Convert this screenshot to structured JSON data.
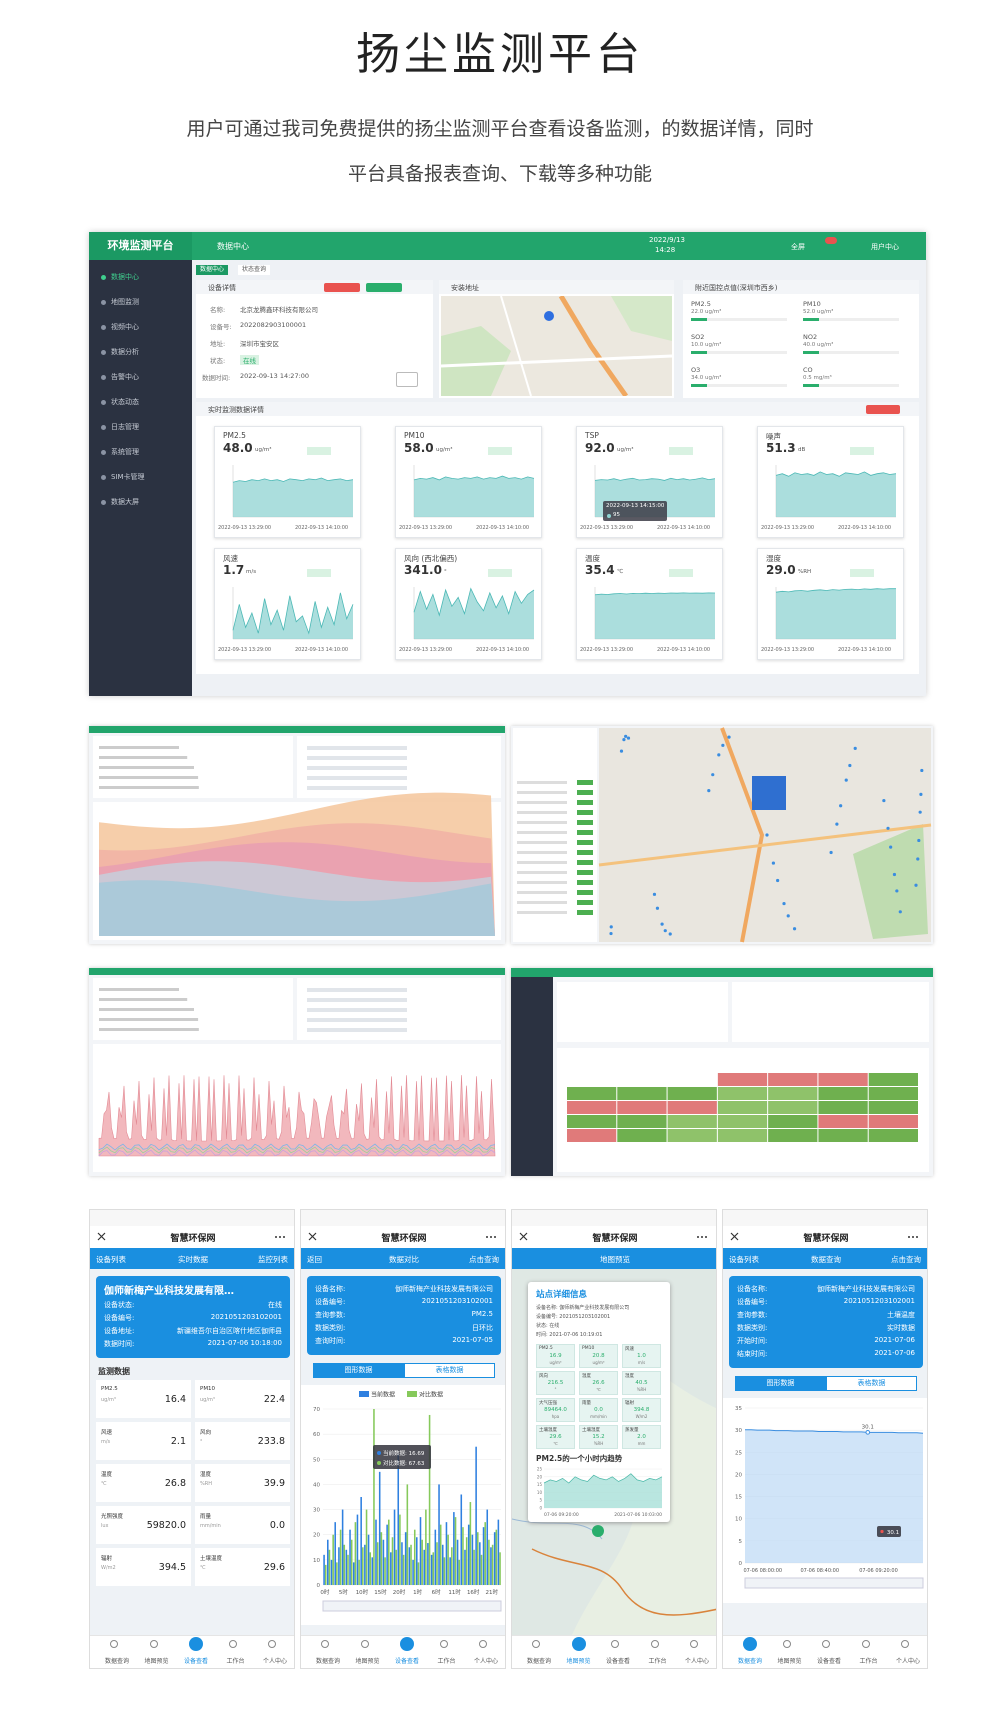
{
  "header": {
    "title": "扬尘监测平台",
    "subtitle": [
      "用户可通过我司免费提供的扬尘监测平台查看设备监测，的数据详情，同时",
      "平台具备报表查询、下载等多种功能"
    ]
  },
  "dashboard": {
    "brand": "环境监测平台",
    "page": "数据中心",
    "date": "2022/9/13",
    "time": "14:28",
    "fullscreen": "全屏",
    "user": "用户中心",
    "menu": [
      "数据中心",
      "地图监测",
      "视频中心",
      "数据分析",
      "告警中心",
      "状态动态",
      "日志管理",
      "系统管理",
      "SIM卡管理",
      "数据大屏"
    ],
    "tabs": [
      "数据中心",
      "状态查询"
    ],
    "device": {
      "title": "设备详情",
      "fields": [
        {
          "label": "名称:",
          "value": "北京龙腾鑫环科技有限公司"
        },
        {
          "label": "设备号:",
          "value": "2022082903100001"
        },
        {
          "label": "地址:",
          "value": "深圳市宝安区"
        },
        {
          "label": "状态:",
          "value": "在线"
        },
        {
          "label": "数据时间:",
          "value": "2022-09-13 14:27:00"
        }
      ]
    },
    "map": {
      "title": "安装地址"
    },
    "nearby": {
      "title": "附近国控点值(深圳市西乡)",
      "items": [
        {
          "name": "PM2.5",
          "value": "22.0 ug/m³"
        },
        {
          "name": "PM10",
          "value": "52.0 ug/m³"
        },
        {
          "name": "SO2",
          "value": "10.0 ug/m³"
        },
        {
          "name": "NO2",
          "value": "40.0 ug/m³"
        },
        {
          "name": "O3",
          "value": "34.0 ug/m³"
        },
        {
          "name": "CO",
          "value": "0.5 mg/m³"
        }
      ]
    },
    "realtime": {
      "title": "实时监测数据详情",
      "x_labels": [
        "2022-09-13 13:29:00",
        "2022-09-13 14:10:00"
      ],
      "sensors": [
        {
          "name": "PM2.5",
          "value": "48.0",
          "unit": "ug/m³",
          "ylim": [
            0,
            60
          ],
          "trend": [
            40,
            42,
            41,
            43,
            42,
            44,
            42,
            43,
            41,
            44,
            43,
            42,
            44,
            43,
            45,
            42,
            43,
            44,
            42,
            43
          ]
        },
        {
          "name": "PM10",
          "value": "58.0",
          "unit": "ug/m³",
          "ylim": [
            0,
            70
          ],
          "trend": [
            50,
            52,
            51,
            53,
            50,
            54,
            52,
            51,
            53,
            52,
            54,
            51,
            53,
            52,
            55,
            52,
            53,
            51,
            54,
            52
          ]
        },
        {
          "name": "TSP",
          "value": "92.0",
          "unit": "ug/m³",
          "ylim": [
            0,
            125
          ],
          "trend": [
            88,
            90,
            89,
            92,
            88,
            91,
            93,
            89,
            90,
            92,
            91,
            88,
            93,
            90,
            92,
            89,
            91,
            94,
            90,
            92
          ],
          "tooltip": [
            "2022-09-13 14:15:00",
            "95"
          ]
        },
        {
          "name": "噪声",
          "value": "51.3",
          "unit": "dB",
          "ylim": [
            0,
            60
          ],
          "trend": [
            48,
            50,
            47,
            51,
            49,
            50,
            48,
            52,
            49,
            50,
            47,
            51,
            50,
            49,
            52,
            48,
            50,
            51,
            49,
            50
          ]
        },
        {
          "name": "风速",
          "value": "1.7",
          "unit": "m/s",
          "ylim": [
            0,
            1.8
          ],
          "trend": [
            0.3,
            1.2,
            0.4,
            0.9,
            0.2,
            1.4,
            0.5,
            1.0,
            0.3,
            1.5,
            0.6,
            0.8,
            0.2,
            1.3,
            0.4,
            1.1,
            0.5,
            1.6,
            0.7,
            1.2
          ]
        },
        {
          "name": "风向 (西北偏西)",
          "value": "341.0",
          "unit": "°",
          "ylim": [
            0,
            350
          ],
          "trend": [
            180,
            320,
            200,
            300,
            160,
            330,
            220,
            280,
            170,
            340,
            250,
            190,
            310,
            210,
            290,
            170,
            320,
            240,
            300,
            330
          ]
        },
        {
          "name": "温度",
          "value": "35.4",
          "unit": "℃",
          "ylim": [
            0,
            40
          ],
          "trend": [
            34,
            34.5,
            34.2,
            34.8,
            35,
            34.6,
            35.1,
            34.9,
            35.2,
            35,
            35.3,
            35.1,
            35.4,
            35.2,
            35.5,
            35.3,
            35.4,
            35.2,
            35.5,
            35.4
          ]
        },
        {
          "name": "湿度",
          "value": "29.0",
          "unit": "%RH",
          "ylim": [
            0,
            30
          ],
          "trend": [
            27,
            27.5,
            27.2,
            27.8,
            28,
            27.6,
            28.1,
            28.4,
            28,
            28.5,
            28.2,
            28.6,
            28.8,
            28.5,
            28.9,
            28.7,
            29,
            28.8,
            29,
            29
          ]
        }
      ]
    }
  },
  "phones": {
    "app": "智慧环保网",
    "nav": [
      "数据查询",
      "地图预览",
      "设备查看",
      "工作台",
      "个人中心"
    ],
    "items": [
      {
        "bar": [
          "设备列表",
          "实时数据",
          "监控列表"
        ],
        "nav_active": 2,
        "card": {
          "title": "伽师新梅产业科技发展有限…",
          "rows": [
            {
              "label": "设备状态:",
              "value": "在线"
            },
            {
              "label": "设备编号:",
              "value": "2021051203102001"
            },
            {
              "label": "设备地址:",
              "value": "新疆维吾尔自治区喀什地区伽师县"
            },
            {
              "label": "数据时间:",
              "value": "2021-07-06 10:18:00"
            }
          ]
        },
        "section": "监测数据",
        "items": [
          {
            "name": "PM2.5",
            "unit": "ug/m³",
            "value": "16.4"
          },
          {
            "name": "PM10",
            "unit": "ug/m³",
            "value": "22.4"
          },
          {
            "name": "风速",
            "unit": "m/s",
            "value": "2.1"
          },
          {
            "name": "风向",
            "unit": "°",
            "value": "233.8"
          },
          {
            "name": "温度",
            "unit": "℃",
            "value": "26.8"
          },
          {
            "name": "湿度",
            "unit": "%RH",
            "value": "39.9"
          },
          {
            "name": "光照强度",
            "unit": "lux",
            "value": "59820.0"
          },
          {
            "name": "雨量",
            "unit": "mm/min",
            "value": "0.0"
          },
          {
            "name": "辐射",
            "unit": "W/m2",
            "value": "394.5"
          },
          {
            "name": "土壤温度",
            "unit": "℃",
            "value": "29.6"
          }
        ]
      },
      {
        "bar": [
          "返回",
          "数据对比",
          "点击查询"
        ],
        "nav_active": 2,
        "card": {
          "rows": [
            {
              "label": "设备名称:",
              "value": "伽师新梅产业科技发展有限公司"
            },
            {
              "label": "设备编号:",
              "value": "2021051203102001"
            },
            {
              "label": "查询参数:",
              "value": "PM2.5"
            },
            {
              "label": "数据类别:",
              "value": "日环比"
            },
            {
              "label": "查询时间:",
              "value": "2021-07-05"
            }
          ]
        },
        "buttons": [
          "图形数据",
          "表格数据"
        ],
        "chart": {
          "type": "bar",
          "ylim": [
            0,
            70
          ],
          "yticks": [
            0,
            10,
            20,
            30,
            40,
            50,
            60,
            70
          ],
          "categories": [
            "0时",
            null,
            null,
            null,
            null,
            "5时",
            null,
            null,
            null,
            null,
            "10时",
            null,
            null,
            null,
            null,
            "15时",
            null,
            null,
            null,
            null,
            "20时",
            null,
            null,
            null,
            null,
            "1时",
            null,
            null,
            null,
            null,
            "6时",
            null,
            null,
            null,
            null,
            "11时",
            null,
            null,
            null,
            null,
            "16时",
            null,
            null,
            null,
            null,
            "21时",
            null,
            null
          ],
          "series": [
            {
              "name": "当前数据",
              "color": "#2f80e0",
              "values": [
                12,
                18,
                10,
                25,
                15,
                30,
                14,
                22,
                9,
                28,
                35,
                16,
                20,
                11,
                26,
                45,
                18,
                24,
                13,
                30,
                52,
                17,
                21,
                15,
                10,
                19,
                27,
                14,
                16.69,
                12,
                22,
                40,
                16,
                25,
                11,
                29,
                18,
                36,
                14,
                24,
                20,
                55,
                17,
                23,
                30,
                15,
                21,
                26
              ]
            },
            {
              "name": "对比数据",
              "color": "#86c95b",
              "values": [
                8,
                14,
                20,
                9,
                22,
                16,
                12,
                18,
                25,
                10,
                15,
                30,
                13,
                70,
                17,
                21,
                11,
                26,
                19,
                14,
                28,
                12,
                40,
                16,
                22,
                9,
                18,
                30,
                67.63,
                13,
                17,
                24,
                11,
                20,
                15,
                27,
                10,
                23,
                19,
                33,
                14,
                21,
                12,
                25,
                18,
                16,
                22,
                13
              ]
            }
          ],
          "tooltip": [
            "当前数据: 16.69",
            "对比数据: 67.63"
          ]
        }
      },
      {
        "bar": [
          "地图预览"
        ],
        "nav_active": 1,
        "popup": {
          "title": "站点详细信息",
          "lines": [
            "设备名称: 伽师新梅产业科技发展有限公司",
            "设备编号: 2021051203102001",
            "状态: 在线",
            "时间: 2021-07-06 10:19:01"
          ],
          "cells": [
            {
              "name": "PM2.5",
              "value": "16.9",
              "unit": "ug/m³"
            },
            {
              "name": "PM10",
              "value": "20.8",
              "unit": "ug/m³"
            },
            {
              "name": "风速",
              "value": "1.0",
              "unit": "m/s"
            },
            {
              "name": "风向",
              "value": "216.5",
              "unit": "°"
            },
            {
              "name": "温度",
              "value": "26.6",
              "unit": "℃"
            },
            {
              "name": "湿度",
              "value": "40.5",
              "unit": "%RH"
            },
            {
              "name": "大气压强",
              "value": "89464.0",
              "unit": "hpa"
            },
            {
              "name": "雨量",
              "value": "0.0",
              "unit": "mm/min"
            },
            {
              "name": "辐射",
              "value": "394.8",
              "unit": "W/m2"
            },
            {
              "name": "土壤温度",
              "value": "29.6",
              "unit": "℃"
            },
            {
              "name": "土壤湿度",
              "value": "15.2",
              "unit": "%RH"
            },
            {
              "name": "蒸发量",
              "value": "2.0",
              "unit": "mm"
            }
          ],
          "trend_title": "PM2.5的一个小时内趋势",
          "ylim": [
            0,
            25
          ],
          "yticks": [
            0,
            5,
            10,
            15,
            20,
            25
          ],
          "trend": [
            16,
            18,
            17,
            19,
            16,
            20,
            18,
            17,
            21,
            19,
            18,
            20,
            17,
            19,
            22,
            18,
            17,
            19,
            18,
            20
          ],
          "x_labels": [
            "07-06 09:20:00",
            "2021-07-06 10:03:00"
          ]
        }
      },
      {
        "bar": [
          "设备列表",
          "数据查询",
          "点击查询"
        ],
        "nav_active": 0,
        "card": {
          "rows": [
            {
              "label": "设备名称:",
              "value": "伽师新梅产业科技发展有限公司"
            },
            {
              "label": "设备编号:",
              "value": "2021051203102001"
            },
            {
              "label": "查询参数:",
              "value": "土壤温度"
            },
            {
              "label": "数据类别:",
              "value": "实时数据"
            },
            {
              "label": "开始时间:",
              "value": "2021-07-06"
            },
            {
              "label": "结束时间:",
              "value": "2021-07-06"
            }
          ]
        },
        "buttons": [
          "图形数据",
          "表格数据"
        ],
        "chart": {
          "type": "line",
          "ylim": [
            0,
            35
          ],
          "yticks": [
            0,
            5,
            10,
            15,
            20,
            25,
            30,
            35
          ],
          "values": [
            30.1,
            30.1,
            30.0,
            30.0,
            30.0,
            29.9,
            29.9,
            29.9,
            29.8,
            29.8,
            29.8,
            29.8,
            29.7,
            29.7,
            29.7,
            29.7,
            29.6,
            29.6,
            29.6,
            29.6,
            29.5,
            29.5,
            29.5,
            29.5,
            29.5,
            29.4,
            29.4,
            29.4,
            29.4,
            29.3
          ],
          "point_label": "30.1",
          "tooltip": "30.1",
          "x_labels": [
            "07-06 08:00:00",
            "07-06 08:40:00",
            "07-06 09:20:00"
          ]
        }
      }
    ]
  }
}
